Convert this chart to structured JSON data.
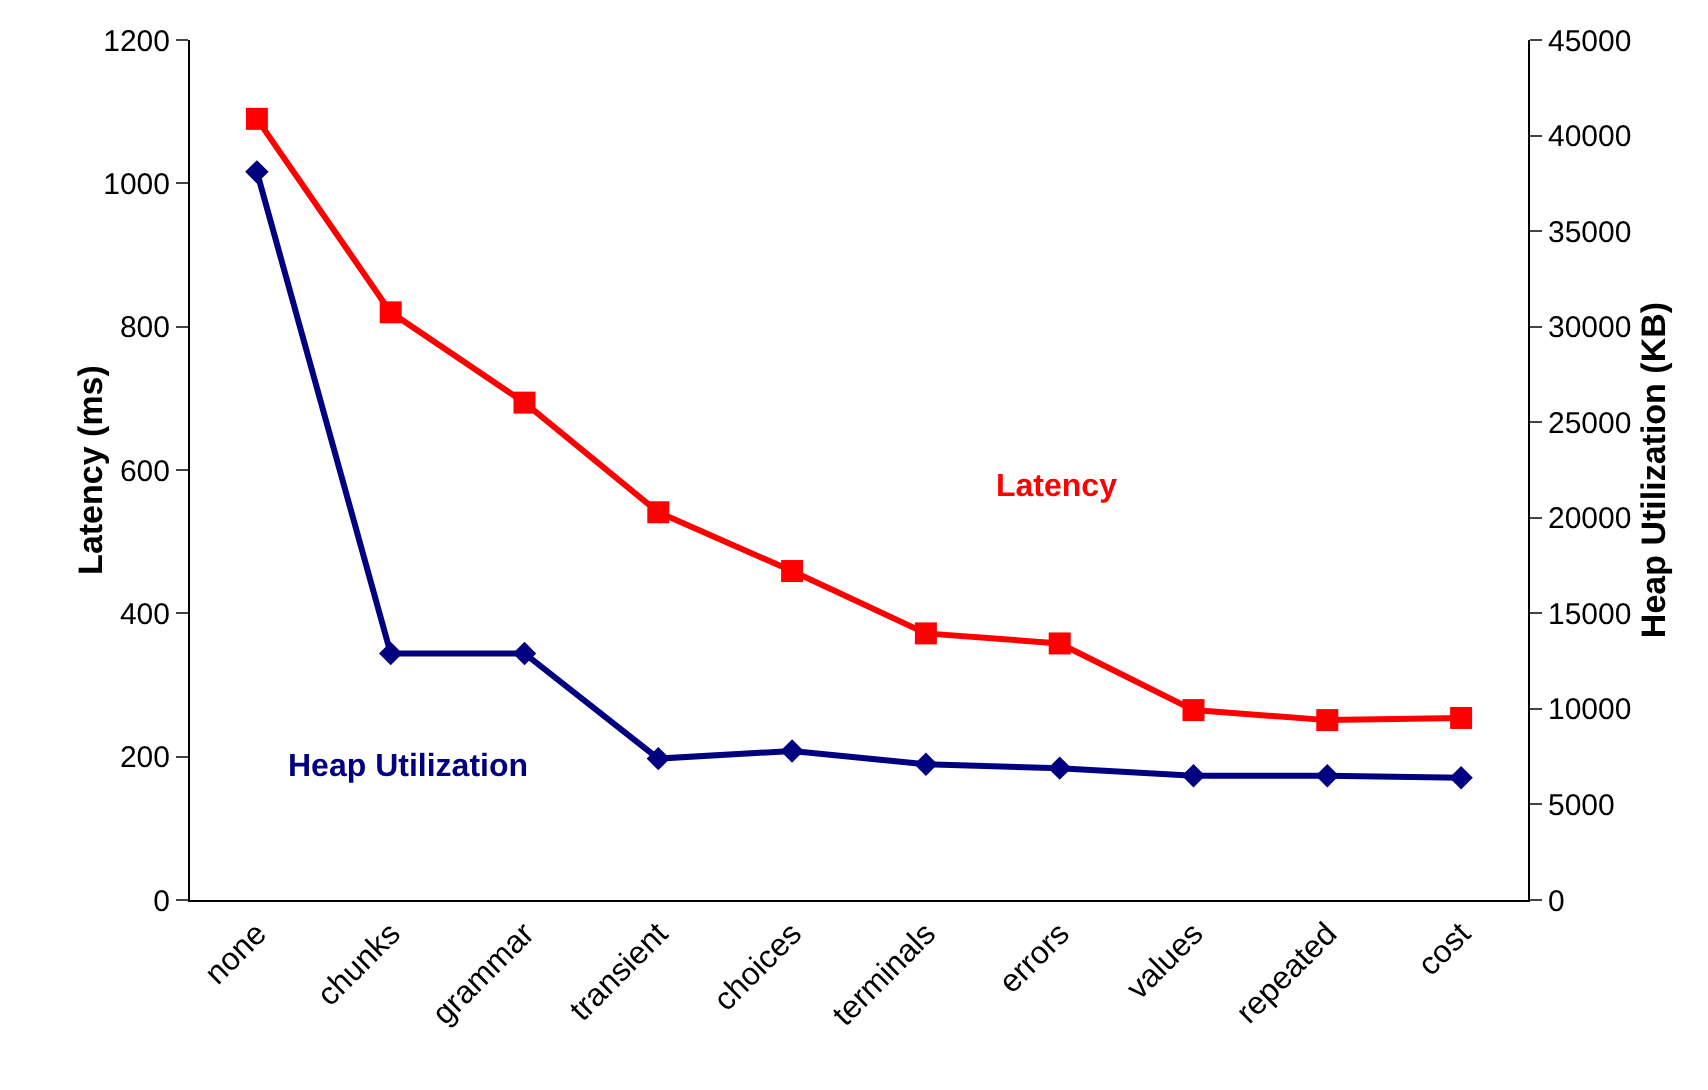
{
  "chart_data": {
    "type": "line",
    "ylabel": "Latency (ms)",
    "y2label": "Heap Utilization (KB)",
    "categories": [
      "none",
      "chunks",
      "grammar",
      "transient",
      "choices",
      "terminals",
      "errors",
      "values",
      "repeated",
      "cost"
    ],
    "series": [
      {
        "name": "Latency",
        "color": "#ff0000",
        "marker": "square",
        "values": [
          1090,
          820,
          694,
          541,
          459,
          372,
          358,
          265,
          251,
          254
        ]
      },
      {
        "name": "Heap Utilization",
        "color": "#000080",
        "marker": "diamond",
        "axis": "y2",
        "values": [
          38100,
          12900,
          12900,
          7400,
          7800,
          7100,
          6900,
          6500,
          6500,
          6400
        ]
      }
    ],
    "ylim": [
      0,
      1200
    ],
    "yticks": [
      0,
      200,
      400,
      600,
      800,
      1000,
      1200
    ],
    "y2lim": [
      0,
      45000
    ],
    "y2ticks": [
      0,
      5000,
      10000,
      15000,
      20000,
      25000,
      30000,
      35000,
      40000,
      45000
    ],
    "grid": false,
    "legend": false,
    "line_style": "solid"
  }
}
